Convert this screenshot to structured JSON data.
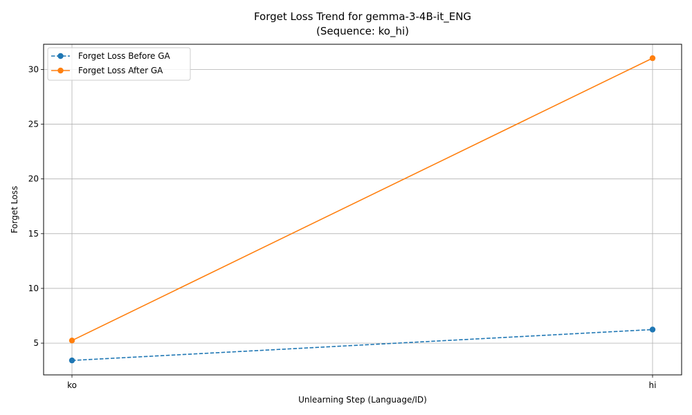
{
  "chart_data": {
    "type": "line",
    "title": "Forget Loss Trend for gemma-3-4B-it_ENG",
    "subtitle": "(Sequence: ko_hi)",
    "xlabel": "Unlearning Step (Language/ID)",
    "ylabel": "Forget Loss",
    "categories": [
      "ko",
      "hi"
    ],
    "ylim": [
      2.1,
      32.3
    ],
    "yticks": [
      5,
      10,
      15,
      20,
      25,
      30
    ],
    "ytick_labels": [
      "5",
      "10",
      "15",
      "20",
      "25",
      "30"
    ],
    "grid": true,
    "legend_position": "top-left",
    "series": [
      {
        "name": "Forget Loss Before GA",
        "values": [
          3.42,
          6.24
        ],
        "color": "#1f77b4",
        "linestyle": "dashed",
        "marker": "circle"
      },
      {
        "name": "Forget Loss After GA",
        "values": [
          5.24,
          31.03
        ],
        "color": "#ff7f0e",
        "linestyle": "solid",
        "marker": "circle"
      }
    ]
  }
}
